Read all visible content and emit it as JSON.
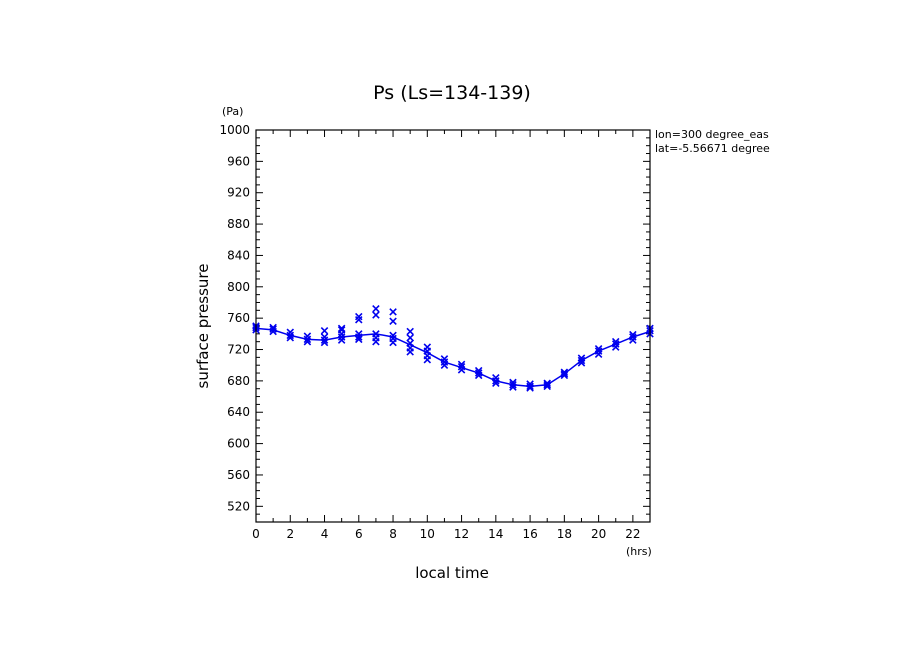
{
  "chart_data": {
    "type": "scatter",
    "title": "Ps (Ls=134-139)",
    "xlabel": "local time",
    "ylabel": "surface pressure",
    "x_unit": "(hrs)",
    "y_unit": "(Pa)",
    "xlim": [
      0,
      23
    ],
    "ylim": [
      500,
      1000
    ],
    "xticks": [
      0,
      2,
      4,
      6,
      8,
      10,
      12,
      14,
      16,
      18,
      20,
      22
    ],
    "yticks": [
      520,
      560,
      600,
      640,
      680,
      720,
      760,
      800,
      840,
      880,
      920,
      960,
      1000
    ],
    "annotations": [
      "lon=300 degree_eas",
      "lat=-5.56671 degree"
    ],
    "colors": {
      "series": "#0000ee",
      "axes": "#000000"
    },
    "series": [
      {
        "type": "scatter",
        "marker": "x",
        "points": [
          [
            0,
            745
          ],
          [
            0,
            748
          ],
          [
            0,
            750
          ],
          [
            1,
            743
          ],
          [
            1,
            746
          ],
          [
            1,
            748
          ],
          [
            2,
            735
          ],
          [
            2,
            738
          ],
          [
            2,
            742
          ],
          [
            3,
            730
          ],
          [
            3,
            733
          ],
          [
            3,
            737
          ],
          [
            4,
            729
          ],
          [
            4,
            732
          ],
          [
            4,
            736
          ],
          [
            4,
            744
          ],
          [
            5,
            732
          ],
          [
            5,
            736
          ],
          [
            5,
            740
          ],
          [
            5,
            745
          ],
          [
            5,
            747
          ],
          [
            6,
            733
          ],
          [
            6,
            736
          ],
          [
            6,
            740
          ],
          [
            6,
            758
          ],
          [
            6,
            762
          ],
          [
            7,
            730
          ],
          [
            7,
            735
          ],
          [
            7,
            740
          ],
          [
            7,
            764
          ],
          [
            7,
            772
          ],
          [
            8,
            729
          ],
          [
            8,
            734
          ],
          [
            8,
            738
          ],
          [
            8,
            756
          ],
          [
            8,
            768
          ],
          [
            9,
            717
          ],
          [
            9,
            722
          ],
          [
            9,
            728
          ],
          [
            9,
            735
          ],
          [
            9,
            743
          ],
          [
            10,
            707
          ],
          [
            10,
            712
          ],
          [
            10,
            718
          ],
          [
            10,
            723
          ],
          [
            11,
            700
          ],
          [
            11,
            704
          ],
          [
            11,
            708
          ],
          [
            12,
            694
          ],
          [
            12,
            698
          ],
          [
            12,
            701
          ],
          [
            13,
            687
          ],
          [
            13,
            690
          ],
          [
            13,
            693
          ],
          [
            14,
            677
          ],
          [
            14,
            680
          ],
          [
            14,
            684
          ],
          [
            15,
            672
          ],
          [
            15,
            675
          ],
          [
            15,
            678
          ],
          [
            16,
            671
          ],
          [
            16,
            673
          ],
          [
            16,
            676
          ],
          [
            17,
            673
          ],
          [
            17,
            675
          ],
          [
            17,
            677
          ],
          [
            18,
            687
          ],
          [
            18,
            689
          ],
          [
            18,
            691
          ],
          [
            19,
            703
          ],
          [
            19,
            706
          ],
          [
            19,
            709
          ],
          [
            20,
            714
          ],
          [
            20,
            718
          ],
          [
            20,
            721
          ],
          [
            21,
            723
          ],
          [
            21,
            727
          ],
          [
            21,
            730
          ],
          [
            22,
            732
          ],
          [
            22,
            736
          ],
          [
            22,
            739
          ],
          [
            23,
            740
          ],
          [
            23,
            744
          ],
          [
            23,
            747
          ]
        ]
      },
      {
        "type": "line",
        "x": [
          0,
          1,
          2,
          3,
          4,
          5,
          6,
          7,
          8,
          9,
          10,
          11,
          12,
          13,
          14,
          15,
          16,
          17,
          18,
          19,
          20,
          21,
          22,
          23
        ],
        "y": [
          747,
          745,
          738,
          733,
          732,
          736,
          738,
          740,
          736,
          726,
          716,
          704,
          697,
          690,
          680,
          675,
          673,
          675,
          689,
          706,
          718,
          727,
          736,
          743
        ]
      }
    ]
  }
}
